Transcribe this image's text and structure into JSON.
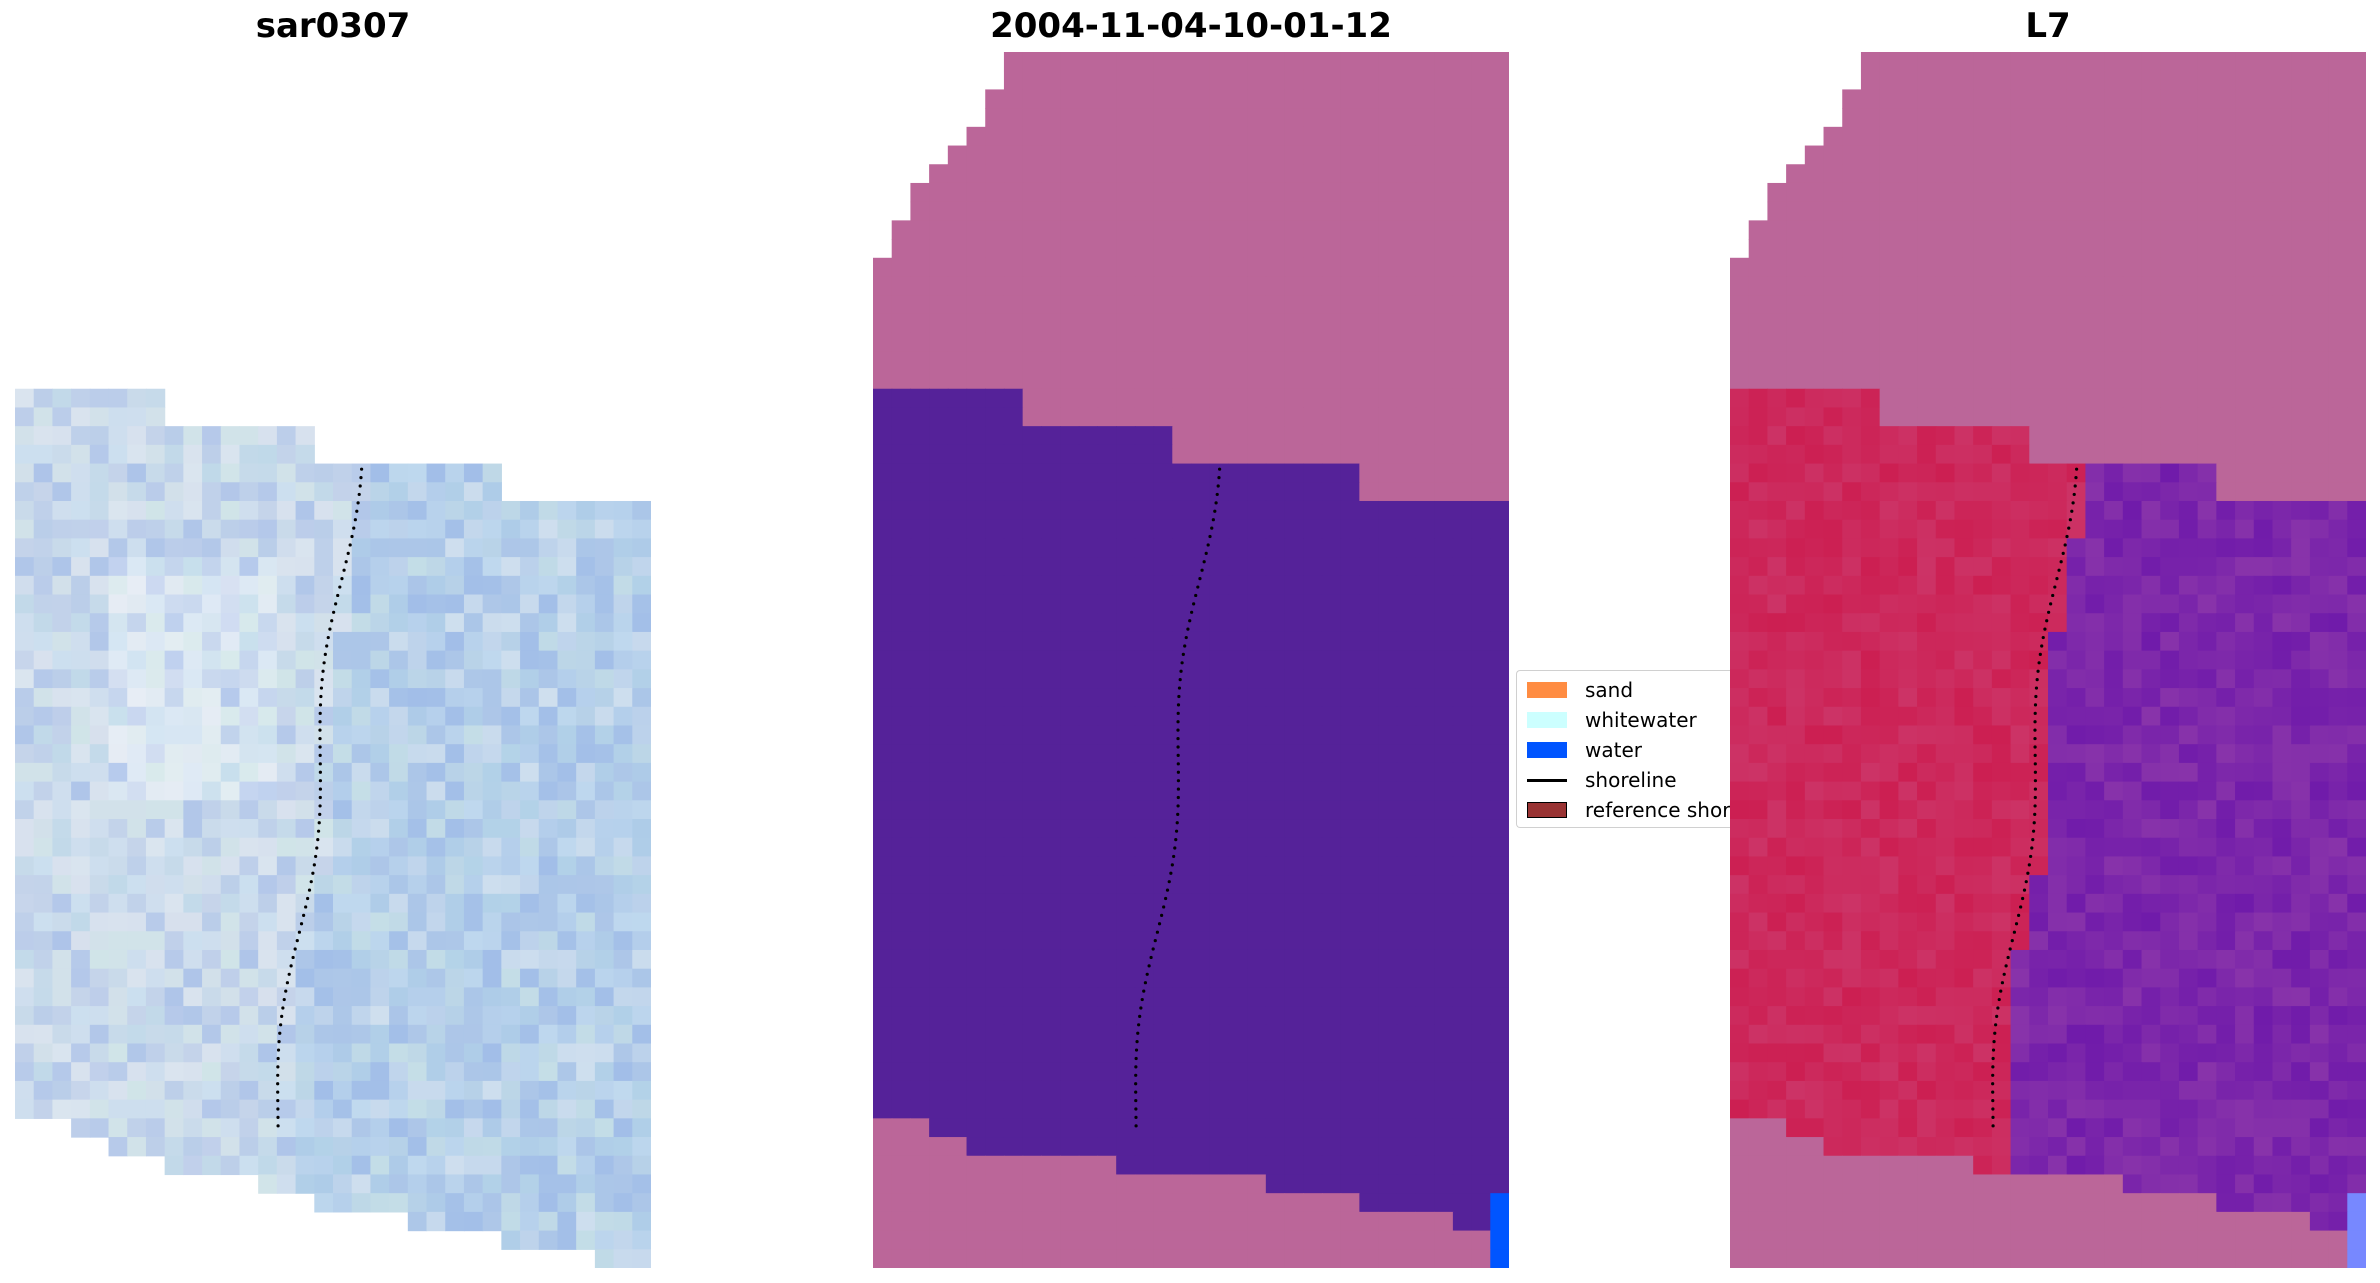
{
  "panels": [
    {
      "title": "sar0307"
    },
    {
      "title": "2004-11-04-10-01-12"
    },
    {
      "title": "L7"
    }
  ],
  "legend": {
    "items": [
      {
        "label": "sand",
        "color": "#ff8c42",
        "kind": "patch"
      },
      {
        "label": "whitewater",
        "color": "#ccffff",
        "kind": "patch"
      },
      {
        "label": "water",
        "color": "#0055ff",
        "kind": "patch"
      },
      {
        "label": "shoreline",
        "color": "#000000",
        "kind": "line"
      },
      {
        "label": "reference shoreline",
        "color": "#993333",
        "kind": "patch"
      }
    ]
  },
  "colors": {
    "classified_land": "#bb6699",
    "classified_water": "#552299",
    "classified_water_edge": "#0055ff",
    "rgb_tint": "#a8c4e8",
    "swir_land": "#cc3366",
    "swir_water": "#8833aa"
  }
}
